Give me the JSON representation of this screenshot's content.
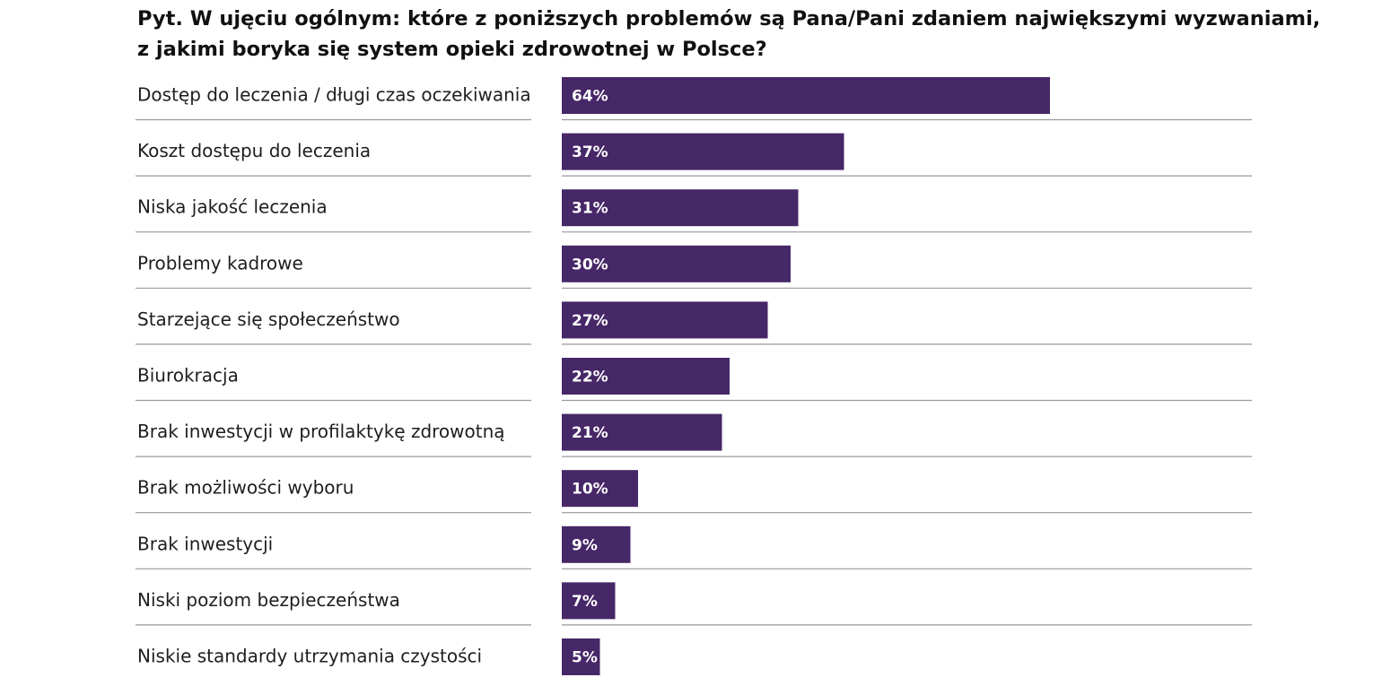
{
  "title_lines": [
    "Pyt. W ujęciu ogólnym: które z poniższych problemów są Pana/Pani zdaniem największymi wyzwaniami,",
    "z jakimi boryka się system opieki zdrowotnej w Polsce?"
  ],
  "colors": {
    "bar": "#462767",
    "separator": "#9a9a9a",
    "value_text": "#ffffff"
  },
  "chart_data": {
    "type": "bar",
    "orientation": "horizontal",
    "categories": [
      "Dostęp do leczenia / długi czas oczekiwania",
      "Koszt dostępu do leczenia",
      "Niska jakość leczenia",
      "Problemy kadrowe",
      "Starzejące się społeczeństwo",
      "Biurokracja",
      "Brak inwestycji w profilaktykę zdrowotną",
      "Brak możliwości wyboru",
      "Brak inwestycji",
      "Niski poziom bezpieczeństwa",
      "Niskie standardy utrzymania czystości"
    ],
    "values": [
      64,
      37,
      31,
      30,
      27,
      22,
      21,
      10,
      9,
      7,
      5
    ],
    "value_labels": [
      "64%",
      "37%",
      "31%",
      "30%",
      "27%",
      "22%",
      "21%",
      "10%",
      "9%",
      "7%",
      "5%"
    ],
    "unit": "%",
    "xlim": [
      0,
      90
    ],
    "grid": false,
    "legend": "none"
  }
}
